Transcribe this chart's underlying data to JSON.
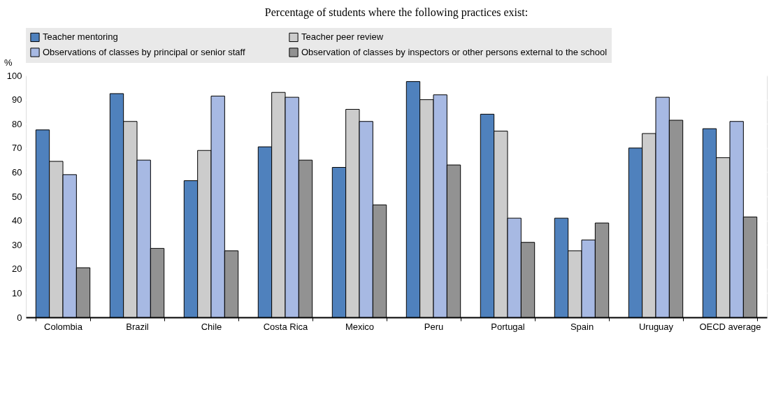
{
  "chart_data": {
    "type": "bar",
    "title": "Percentage of students where the following practices exist:",
    "ylabel": "%",
    "categories": [
      "Colombia",
      "Brazil",
      "Chile",
      "Costa Rica",
      "Mexico",
      "Peru",
      "Portugal",
      "Spain",
      "Uruguay",
      "OECD average"
    ],
    "series": [
      {
        "name": "Teacher mentoring",
        "color": "#4f81bd",
        "values": [
          77.5,
          92.5,
          56.5,
          70.5,
          62,
          97.5,
          84,
          41,
          70,
          78
        ]
      },
      {
        "name": "Teacher peer review",
        "color": "#cccccc",
        "values": [
          64.5,
          81,
          69,
          93,
          86,
          90,
          77,
          27.5,
          76,
          66
        ]
      },
      {
        "name": "Observations of classes by principal or senior staff",
        "color": "#a7b9e3",
        "values": [
          59,
          65,
          91.5,
          91,
          81,
          92,
          41,
          32,
          91,
          81
        ]
      },
      {
        "name": "Observation of classes by inspectors or other persons external to the school",
        "color": "#929292",
        "values": [
          20.5,
          28.5,
          27.5,
          65,
          46.5,
          63,
          31,
          39,
          81.5,
          41.5
        ]
      }
    ],
    "ylim": [
      0,
      100
    ],
    "yticks": [
      0,
      10,
      20,
      30,
      40,
      50,
      60,
      70,
      80,
      90,
      100
    ],
    "grid": true,
    "legend": "top"
  }
}
